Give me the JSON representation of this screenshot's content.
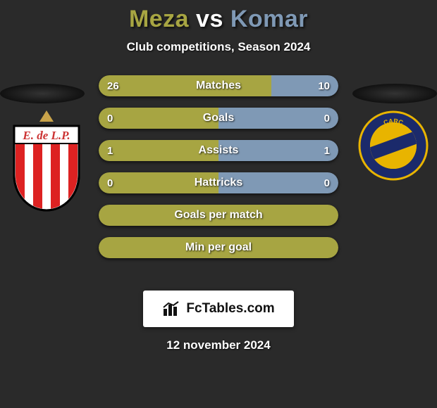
{
  "title": {
    "player1": "Meza",
    "vs": "vs",
    "player2": "Komar",
    "player1_color": "#a7a542",
    "vs_color": "#ffffff",
    "player2_color": "#7f99b5"
  },
  "subtitle": "Club competitions, Season 2024",
  "date": "12 november 2024",
  "brand": "FcTables.com",
  "colors": {
    "left_bar": "#a7a542",
    "right_bar": "#7f99b5",
    "background": "#2a2a2a"
  },
  "crest_left": {
    "label": "E. de L.P.",
    "star_color": "#c9a34a",
    "band_bg": "#ffffff",
    "band_text": "#c33",
    "stripe_red": "#d22",
    "stripe_white": "#ffffff"
  },
  "crest_right": {
    "label": "CARC",
    "outer": "#1b2a6b",
    "inner": "#e8b400",
    "stripe": "#1b2a6b"
  },
  "bars": [
    {
      "label": "Matches",
      "left_val": "26",
      "right_val": "10",
      "left_pct": 72,
      "right_pct": 28,
      "show_vals": true
    },
    {
      "label": "Goals",
      "left_val": "0",
      "right_val": "0",
      "left_pct": 50,
      "right_pct": 50,
      "show_vals": true
    },
    {
      "label": "Assists",
      "left_val": "1",
      "right_val": "1",
      "left_pct": 50,
      "right_pct": 50,
      "show_vals": true
    },
    {
      "label": "Hattricks",
      "left_val": "0",
      "right_val": "0",
      "left_pct": 50,
      "right_pct": 50,
      "show_vals": true
    },
    {
      "label": "Goals per match",
      "left_val": "",
      "right_val": "",
      "left_pct": 100,
      "right_pct": 0,
      "show_vals": false
    },
    {
      "label": "Min per goal",
      "left_val": "",
      "right_val": "",
      "left_pct": 100,
      "right_pct": 0,
      "show_vals": false
    }
  ]
}
